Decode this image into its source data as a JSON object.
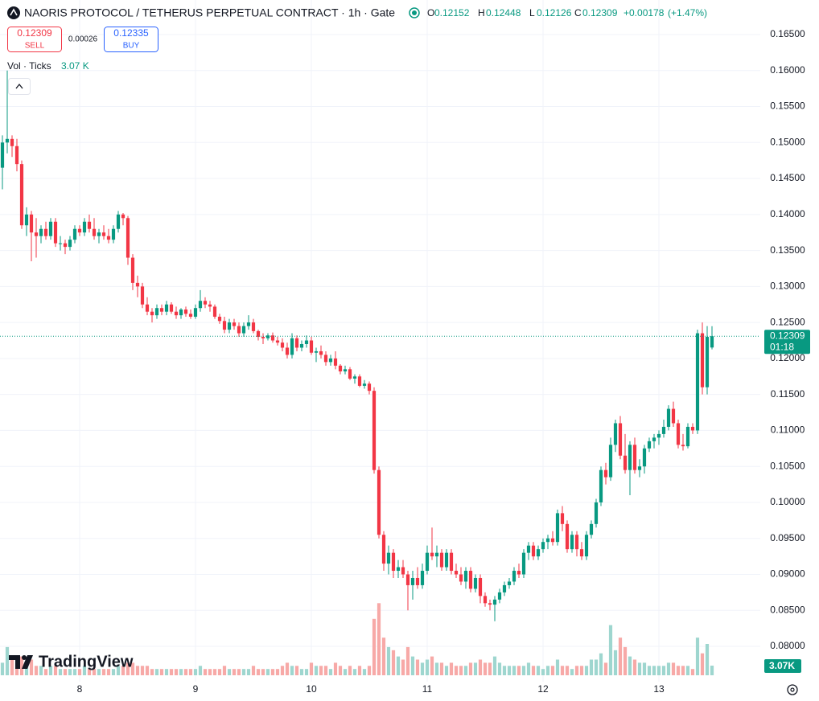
{
  "chart_data": {
    "type": "candlestick",
    "title": "NAORIS PROTOCOL / TETHERUS PERPETUAL CONTRACT · 1h · Gate",
    "ohlc_letters": [
      "O",
      "H",
      "L",
      "C"
    ],
    "change": {
      "value": 0.00178,
      "label": "+0.00178"
    },
    "change_pct": {
      "value": 1.47,
      "label": "(+1.47%)"
    },
    "sell_label": "SELL",
    "buy_label": "BUY",
    "buy_price": 0.12335,
    "spread": 0.00026,
    "volume_name": "Vol · Ticks",
    "volume_value_label": "3.07 K",
    "volume_tag": "3.07K",
    "countdown": "01:18",
    "brand": "TradingView",
    "up_color": "#089981",
    "down_color": "#f23645",
    "up_volume_color": "#9ed6cf",
    "down_volume_color": "#f7a9a7",
    "grid": true,
    "open": [
      0.1465,
      0.15,
      0.1505,
      0.1495,
      0.147,
      0.1385,
      0.14,
      0.1375,
      0.137,
      0.138,
      0.137,
      0.139,
      0.136,
      0.136,
      0.1355,
      0.1365,
      0.138,
      0.1375,
      0.139,
      0.138,
      0.137,
      0.1375,
      0.137,
      0.1365,
      0.138,
      0.14,
      0.1395,
      0.134,
      0.1305,
      0.13,
      0.1275,
      0.1265,
      0.126,
      0.127,
      0.1265,
      0.1275,
      0.1265,
      0.126,
      0.1268,
      0.1262,
      0.1258,
      0.127,
      0.128,
      0.1275,
      0.1272,
      0.1258,
      0.1252,
      0.124,
      0.125,
      0.1245,
      0.1235,
      0.1245,
      0.125,
      0.1238,
      0.123,
      0.1228,
      0.1232,
      0.1225,
      0.1222,
      0.1215,
      0.1205,
      0.1228,
      0.1215,
      0.122,
      0.1225,
      0.1208,
      0.121,
      0.1205,
      0.1195,
      0.12,
      0.119,
      0.1182,
      0.1185,
      0.1172,
      0.1175,
      0.1162,
      0.1165,
      0.1155,
      0.1045,
      0.0955,
      0.0915,
      0.093,
      0.0905,
      0.091,
      0.09,
      0.0885,
      0.0895,
      0.0885,
      0.0905,
      0.093,
      0.0925,
      0.093,
      0.091,
      0.093,
      0.0905,
      0.09,
      0.089,
      0.0905,
      0.088,
      0.0895,
      0.087,
      0.086,
      0.0858,
      0.0865,
      0.0875,
      0.0885,
      0.089,
      0.0905,
      0.09,
      0.093,
      0.094,
      0.0925,
      0.0935,
      0.0945,
      0.095,
      0.0945,
      0.0985,
      0.097,
      0.0935,
      0.0955,
      0.0935,
      0.0925,
      0.0955,
      0.097,
      0.1,
      0.1045,
      0.1035,
      0.108,
      0.111,
      0.1065,
      0.1045,
      0.108,
      0.1045,
      0.105,
      0.1075,
      0.1085,
      0.109,
      0.1095,
      0.1105,
      0.113,
      0.111,
      0.108,
      0.1078,
      0.1105,
      0.11,
      0.1235,
      0.116,
      0.12152
    ],
    "high": [
      0.151,
      0.16,
      0.151,
      0.1505,
      0.1475,
      0.141,
      0.1405,
      0.1395,
      0.1385,
      0.139,
      0.1395,
      0.1395,
      0.137,
      0.1365,
      0.137,
      0.1385,
      0.1385,
      0.1395,
      0.14,
      0.1395,
      0.138,
      0.1385,
      0.138,
      0.1385,
      0.1405,
      0.1402,
      0.1398,
      0.1345,
      0.1315,
      0.1305,
      0.1285,
      0.127,
      0.1275,
      0.1275,
      0.128,
      0.1278,
      0.1272,
      0.127,
      0.1272,
      0.1268,
      0.1275,
      0.1295,
      0.1285,
      0.128,
      0.1275,
      0.1262,
      0.1258,
      0.1255,
      0.1255,
      0.125,
      0.125,
      0.126,
      0.1255,
      0.124,
      0.1235,
      0.1235,
      0.1236,
      0.123,
      0.1228,
      0.1222,
      0.1235,
      0.1232,
      0.1225,
      0.1232,
      0.123,
      0.1215,
      0.1218,
      0.121,
      0.1205,
      0.121,
      0.1192,
      0.119,
      0.1188,
      0.1178,
      0.1178,
      0.117,
      0.1168,
      0.116,
      0.105,
      0.096,
      0.094,
      0.0935,
      0.092,
      0.092,
      0.0905,
      0.0905,
      0.091,
      0.0915,
      0.094,
      0.0965,
      0.094,
      0.0935,
      0.0935,
      0.0935,
      0.0915,
      0.091,
      0.091,
      0.091,
      0.09,
      0.09,
      0.0875,
      0.0865,
      0.087,
      0.088,
      0.089,
      0.0895,
      0.091,
      0.0915,
      0.0935,
      0.0945,
      0.0945,
      0.094,
      0.095,
      0.0955,
      0.096,
      0.099,
      0.0995,
      0.0975,
      0.096,
      0.096,
      0.0945,
      0.096,
      0.0975,
      0.1005,
      0.105,
      0.1055,
      0.109,
      0.1115,
      0.112,
      0.1095,
      0.1085,
      0.109,
      0.106,
      0.108,
      0.109,
      0.1095,
      0.11,
      0.1115,
      0.1135,
      0.114,
      0.1115,
      0.1095,
      0.111,
      0.111,
      0.124,
      0.125,
      0.1245,
      0.12448
    ],
    "low": [
      0.1435,
      0.1485,
      0.148,
      0.146,
      0.138,
      0.137,
      0.1335,
      0.134,
      0.136,
      0.1365,
      0.1365,
      0.1355,
      0.135,
      0.1345,
      0.135,
      0.136,
      0.137,
      0.137,
      0.1375,
      0.1365,
      0.136,
      0.1365,
      0.136,
      0.136,
      0.1375,
      0.1385,
      0.133,
      0.1295,
      0.1285,
      0.127,
      0.126,
      0.125,
      0.1255,
      0.126,
      0.126,
      0.1262,
      0.1255,
      0.1255,
      0.1258,
      0.1255,
      0.1255,
      0.1265,
      0.127,
      0.1265,
      0.1255,
      0.1248,
      0.1235,
      0.1235,
      0.124,
      0.123,
      0.123,
      0.124,
      0.1235,
      0.1225,
      0.122,
      0.1225,
      0.1222,
      0.1218,
      0.121,
      0.12,
      0.12,
      0.121,
      0.121,
      0.1215,
      0.1205,
      0.1195,
      0.12,
      0.119,
      0.119,
      0.1185,
      0.1178,
      0.1178,
      0.117,
      0.1165,
      0.116,
      0.1158,
      0.115,
      0.104,
      0.095,
      0.0905,
      0.09,
      0.0895,
      0.0895,
      0.0895,
      0.085,
      0.0865,
      0.088,
      0.088,
      0.09,
      0.092,
      0.091,
      0.0905,
      0.0905,
      0.09,
      0.0895,
      0.0885,
      0.088,
      0.0875,
      0.0875,
      0.086,
      0.0855,
      0.085,
      0.0835,
      0.086,
      0.087,
      0.088,
      0.0885,
      0.0895,
      0.0895,
      0.092,
      0.092,
      0.092,
      0.093,
      0.0935,
      0.094,
      0.094,
      0.096,
      0.093,
      0.093,
      0.0925,
      0.092,
      0.092,
      0.095,
      0.0965,
      0.0995,
      0.1025,
      0.103,
      0.107,
      0.106,
      0.104,
      0.101,
      0.104,
      0.1035,
      0.104,
      0.107,
      0.1075,
      0.108,
      0.109,
      0.11,
      0.1105,
      0.1075,
      0.1072,
      0.1075,
      0.1095,
      0.1095,
      0.115,
      0.115,
      0.12126
    ],
    "close": [
      0.15,
      0.1505,
      0.1495,
      0.147,
      0.1385,
      0.14,
      0.1375,
      0.137,
      0.138,
      0.137,
      0.139,
      0.136,
      0.136,
      0.1355,
      0.1365,
      0.138,
      0.1375,
      0.139,
      0.138,
      0.137,
      0.1375,
      0.137,
      0.1365,
      0.138,
      0.14,
      0.1395,
      0.134,
      0.1305,
      0.13,
      0.1275,
      0.1265,
      0.126,
      0.127,
      0.1265,
      0.1275,
      0.1265,
      0.126,
      0.1268,
      0.1262,
      0.1258,
      0.127,
      0.128,
      0.1275,
      0.1272,
      0.1258,
      0.1252,
      0.124,
      0.125,
      0.1245,
      0.1235,
      0.1245,
      0.125,
      0.1238,
      0.123,
      0.1228,
      0.1232,
      0.1225,
      0.1222,
      0.1215,
      0.1205,
      0.1228,
      0.1215,
      0.122,
      0.1225,
      0.1208,
      0.121,
      0.1205,
      0.1195,
      0.12,
      0.119,
      0.1182,
      0.1185,
      0.1172,
      0.1175,
      0.1162,
      0.1165,
      0.1155,
      0.1045,
      0.0955,
      0.0915,
      0.093,
      0.0905,
      0.091,
      0.09,
      0.0885,
      0.0895,
      0.0885,
      0.0905,
      0.093,
      0.0925,
      0.093,
      0.091,
      0.093,
      0.0905,
      0.09,
      0.089,
      0.0905,
      0.088,
      0.0895,
      0.087,
      0.086,
      0.0858,
      0.0865,
      0.0875,
      0.0885,
      0.089,
      0.0905,
      0.09,
      0.093,
      0.094,
      0.0925,
      0.0935,
      0.0945,
      0.095,
      0.0945,
      0.0985,
      0.097,
      0.0935,
      0.0955,
      0.0935,
      0.0925,
      0.0955,
      0.097,
      0.1,
      0.1045,
      0.1035,
      0.108,
      0.111,
      0.1065,
      0.1045,
      0.108,
      0.1045,
      0.105,
      0.1075,
      0.1085,
      0.109,
      0.1095,
      0.1105,
      0.113,
      0.111,
      0.108,
      0.1078,
      0.1105,
      0.11,
      0.1235,
      0.116,
      0.123,
      0.12309
    ],
    "volume": [
      4,
      9,
      5,
      4,
      6,
      4,
      5,
      3,
      3,
      2,
      3,
      3,
      2,
      2,
      2,
      2,
      2,
      3,
      2,
      2,
      2,
      2,
      2,
      2,
      3,
      3,
      4,
      4,
      3,
      3,
      3,
      2,
      2,
      2,
      2,
      2,
      2,
      2,
      2,
      2,
      2,
      3,
      2,
      2,
      2,
      2,
      3,
      2,
      2,
      2,
      2,
      2,
      3,
      2,
      2,
      2,
      2,
      2,
      3,
      4,
      3,
      3,
      2,
      2,
      4,
      3,
      3,
      3,
      2,
      4,
      3,
      2,
      3,
      2,
      3,
      2,
      3,
      18,
      23,
      12,
      9,
      8,
      6,
      5,
      9,
      6,
      5,
      4,
      5,
      6,
      4,
      4,
      3,
      4,
      3,
      3,
      3,
      4,
      4,
      5,
      4,
      4,
      6,
      4,
      3,
      3,
      3,
      3,
      3,
      4,
      3,
      3,
      2,
      3,
      3,
      5,
      3,
      3,
      2,
      3,
      3,
      3,
      5,
      5,
      7,
      4,
      16,
      8,
      12,
      9,
      6,
      5,
      4,
      4,
      3,
      3,
      3,
      3,
      4,
      4,
      3,
      3,
      3,
      2,
      12,
      7,
      10,
      3.07
    ],
    "xlim": [
      -0.5,
      157
    ],
    "xticks": [
      {
        "value": 16,
        "label": "8"
      },
      {
        "value": 40,
        "label": "9"
      },
      {
        "value": 64,
        "label": "10"
      },
      {
        "value": 88,
        "label": "11"
      },
      {
        "value": 112,
        "label": "12"
      },
      {
        "value": 136,
        "label": "13"
      }
    ],
    "ylim": [
      0.07509,
      0.1698
    ],
    "yticks": [
      {
        "value": 0.165,
        "label": "0.16500"
      },
      {
        "value": 0.16,
        "label": "0.16000"
      },
      {
        "value": 0.155,
        "label": "0.15500"
      },
      {
        "value": 0.15,
        "label": "0.15000"
      },
      {
        "value": 0.145,
        "label": "0.14500"
      },
      {
        "value": 0.14,
        "label": "0.14000"
      },
      {
        "value": 0.135,
        "label": "0.13500"
      },
      {
        "value": 0.13,
        "label": "0.13000"
      },
      {
        "value": 0.125,
        "label": "0.12500"
      },
      {
        "value": 0.12,
        "label": "0.12000"
      },
      {
        "value": 0.115,
        "label": "0.11500"
      },
      {
        "value": 0.11,
        "label": "0.11000"
      },
      {
        "value": 0.105,
        "label": "0.10500"
      },
      {
        "value": 0.1,
        "label": "0.10000"
      },
      {
        "value": 0.095,
        "label": "0.09500"
      },
      {
        "value": 0.09,
        "label": "0.09000"
      },
      {
        "value": 0.085,
        "label": "0.08500"
      },
      {
        "value": 0.08,
        "label": "0.08000"
      }
    ],
    "volume_ylim": [
      0,
      40
    ]
  }
}
